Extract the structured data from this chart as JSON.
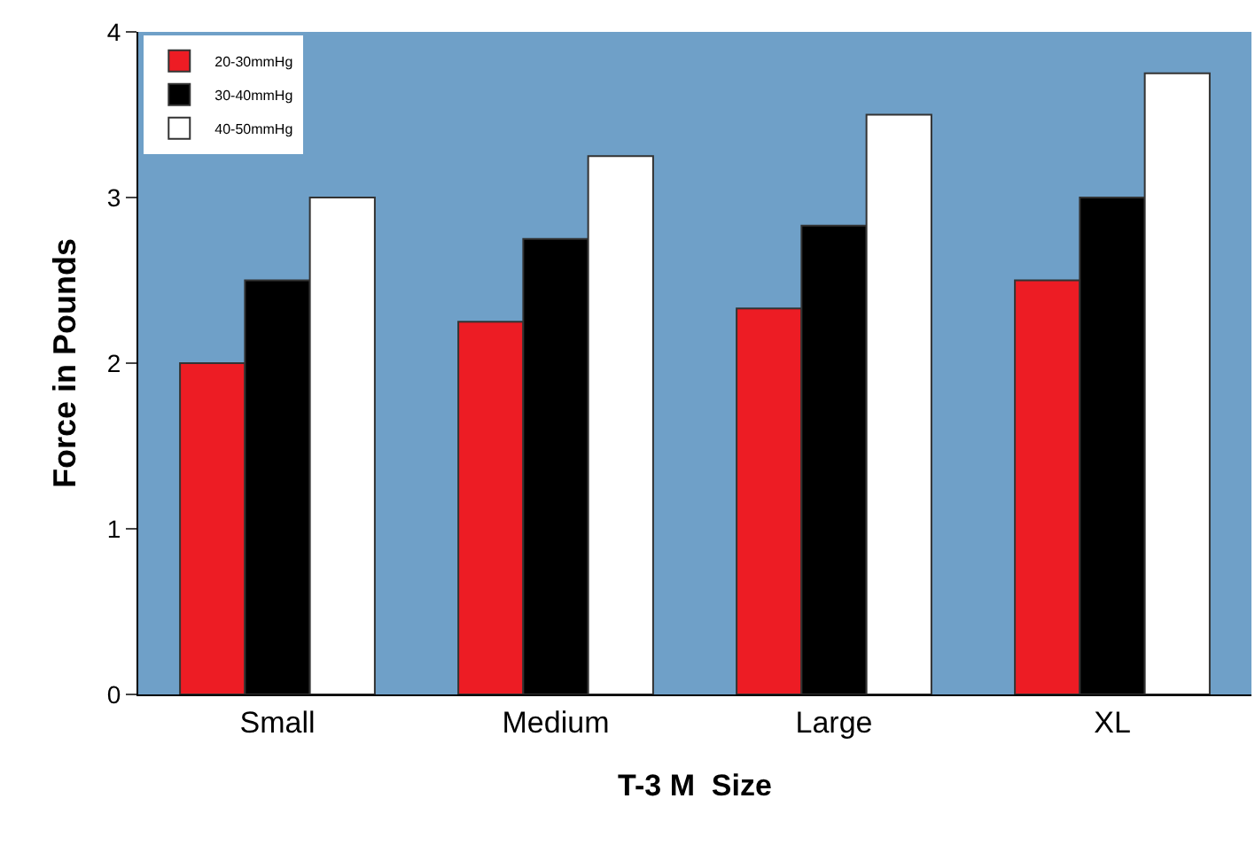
{
  "chart_data": {
    "type": "bar",
    "xlabel": "T-3 M  Size",
    "ylabel": "Force in Pounds",
    "categories": [
      "Small",
      "Medium",
      "Large",
      "XL"
    ],
    "series": [
      {
        "name": "20-30mmHg",
        "color": "#ed1c24",
        "values": [
          2,
          2.25,
          2.33,
          2.5
        ]
      },
      {
        "name": "30-40mmHg",
        "color": "#000000",
        "values": [
          2.5,
          2.75,
          2.83,
          3
        ]
      },
      {
        "name": "40-50mmHg",
        "color": "#ffffff",
        "values": [
          3,
          3.25,
          3.5,
          3.75
        ]
      }
    ],
    "ylim": [
      0,
      4
    ],
    "yticks": [
      0,
      1,
      2,
      3,
      4
    ],
    "grid": false,
    "legend": "top left"
  }
}
